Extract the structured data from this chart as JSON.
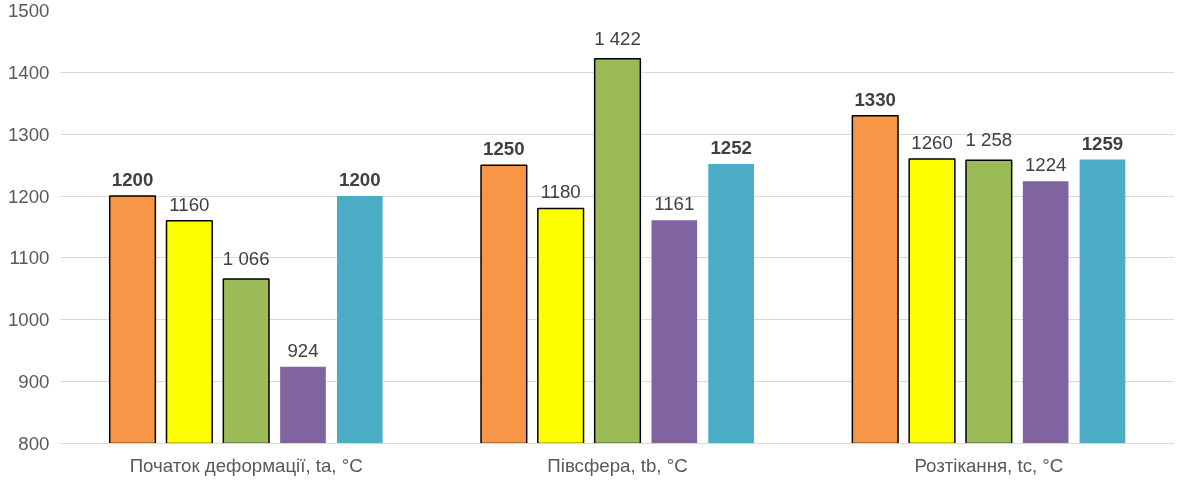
{
  "chart_data": {
    "type": "bar",
    "categories": [
      "Початок деформації, ta, °C",
      "Півсфера, tb, °C",
      "Розтікання, tc, °C"
    ],
    "series": [
      {
        "color": "#f79646",
        "values": [
          1200,
          1250,
          1330
        ],
        "value_labels": [
          "1200",
          "1250",
          "1330"
        ]
      },
      {
        "color": "#ffff00",
        "values": [
          1160,
          1180,
          1260
        ],
        "value_labels": [
          "1160",
          "1180",
          "1260"
        ]
      },
      {
        "color": "#9bbb59",
        "values": [
          1066,
          1422,
          1258
        ],
        "value_labels": [
          "1 066",
          "1 422",
          "1 258"
        ]
      },
      {
        "color": "#8064a2",
        "values": [
          924,
          1161,
          1224
        ],
        "value_labels": [
          "924",
          "1161",
          "1224"
        ]
      },
      {
        "color": "#4bacc6",
        "values": [
          1200,
          1252,
          1259
        ],
        "value_labels": [
          "1200",
          "1252",
          "1259"
        ]
      }
    ],
    "ylim": [
      800,
      1500
    ],
    "yticks": [
      800,
      900,
      1000,
      1100,
      1200,
      1300,
      1400,
      1500
    ],
    "grid": "y"
  }
}
